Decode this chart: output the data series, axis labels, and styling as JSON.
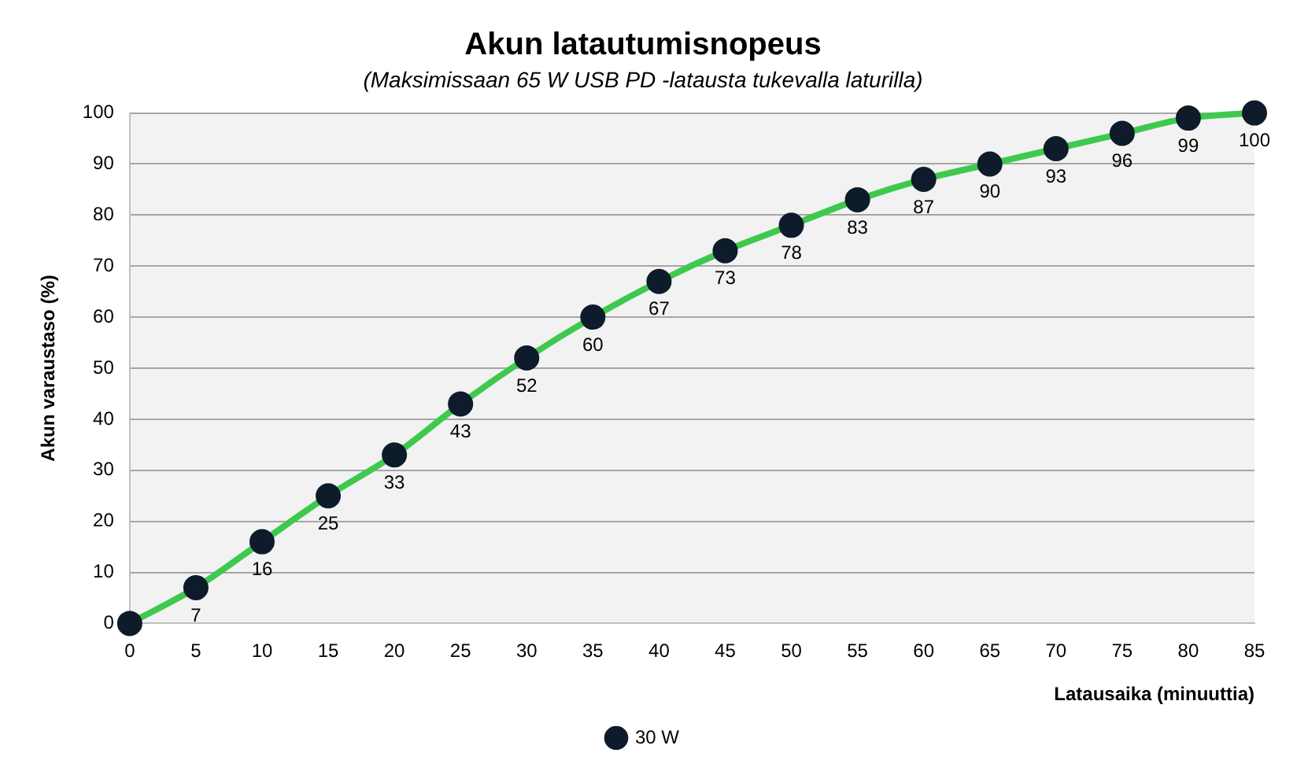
{
  "chart_data": {
    "type": "line",
    "title": "Akun latautumisnopeus",
    "subtitle": "(Maksimissaan 65 W USB PD -latausta tukevalla laturilla)",
    "xlabel": "Latausaika (minuuttia)",
    "ylabel": "Akun varaustaso (%)",
    "x": [
      0,
      5,
      10,
      15,
      20,
      25,
      30,
      35,
      40,
      45,
      50,
      55,
      60,
      65,
      70,
      75,
      80,
      85
    ],
    "series": [
      {
        "name": "30 W",
        "color": "#3ec94e",
        "values": [
          0,
          7,
          16,
          25,
          33,
          43,
          52,
          60,
          67,
          73,
          78,
          83,
          87,
          90,
          93,
          96,
          99,
          100
        ],
        "value_labels": [
          null,
          "7",
          "16",
          "25",
          "33",
          "43",
          "52",
          "60",
          "67",
          "73",
          "78",
          "83",
          "87",
          "90",
          "93",
          "96",
          "99",
          "100"
        ]
      }
    ],
    "xlim": [
      0,
      85
    ],
    "xticks": [
      0,
      5,
      10,
      15,
      20,
      25,
      30,
      35,
      40,
      45,
      50,
      55,
      60,
      65,
      70,
      75,
      80,
      85
    ],
    "ylim": [
      0,
      100
    ],
    "yticks": [
      0,
      10,
      20,
      30,
      40,
      50,
      60,
      70,
      80,
      90,
      100
    ],
    "grid": "y",
    "legend": "bottom",
    "marker": "circle",
    "line_style": "solid"
  }
}
